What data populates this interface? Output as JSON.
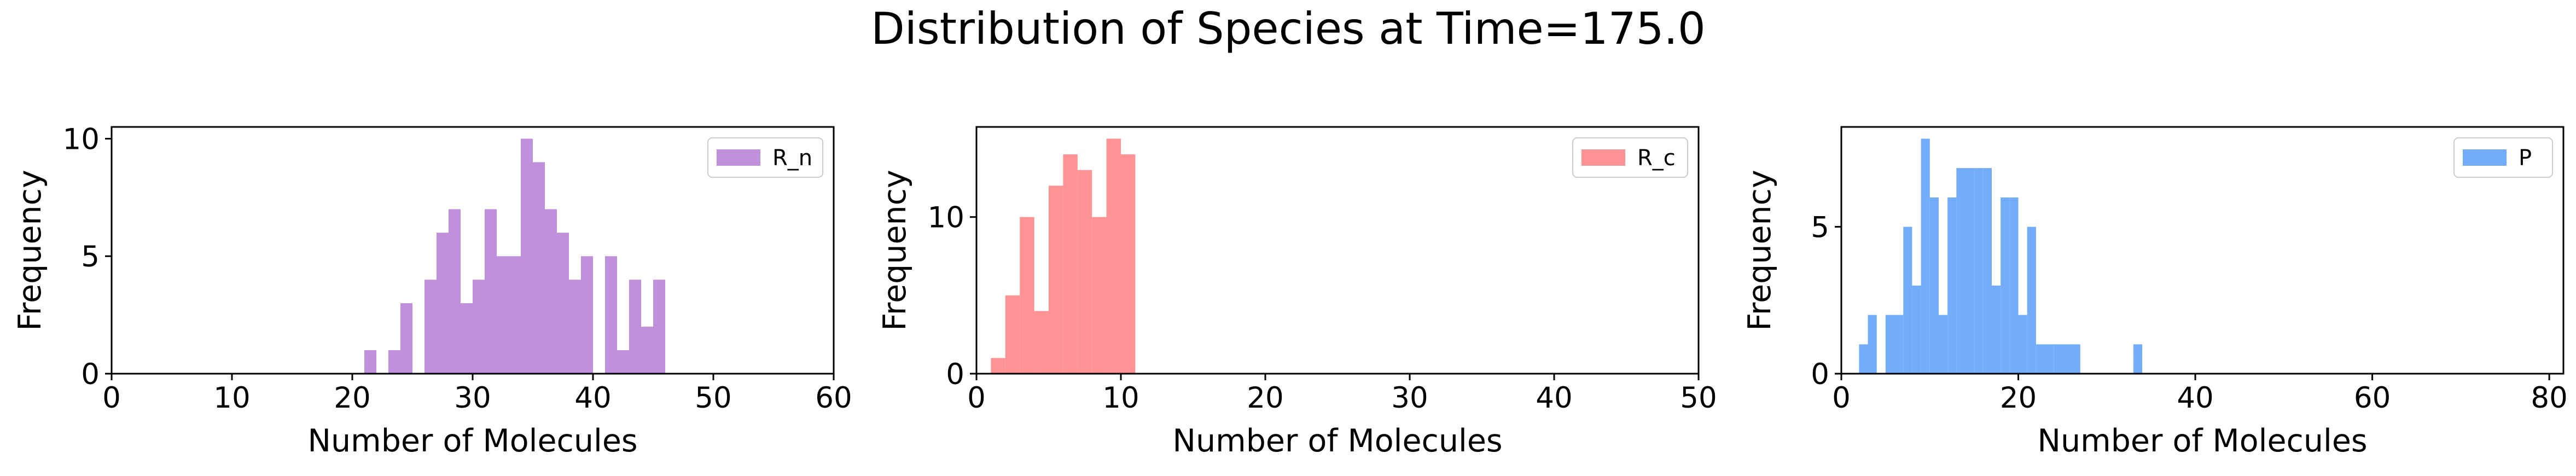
{
  "figure": {
    "suptitle": "Distribution of Species at Time=175.0"
  },
  "chart_data": [
    {
      "type": "bar",
      "subtype": "histogram",
      "xlabel": "Number of Molecules",
      "ylabel": "Frequency",
      "xlim": [
        0,
        60
      ],
      "ylim": [
        0,
        10.5
      ],
      "xticks": [
        0,
        10,
        20,
        30,
        40,
        50,
        60
      ],
      "yticks": [
        0,
        5,
        10
      ],
      "legend": {
        "position": "top-right"
      },
      "series": [
        {
          "name": "R_n",
          "color": "#b57cd4",
          "bin_width": 1,
          "bins": [
            {
              "start": 21,
              "count": 1
            },
            {
              "start": 22,
              "count": 0
            },
            {
              "start": 23,
              "count": 1
            },
            {
              "start": 24,
              "count": 3
            },
            {
              "start": 25,
              "count": 0
            },
            {
              "start": 26,
              "count": 4
            },
            {
              "start": 27,
              "count": 6
            },
            {
              "start": 28,
              "count": 7
            },
            {
              "start": 29,
              "count": 3
            },
            {
              "start": 30,
              "count": 4
            },
            {
              "start": 31,
              "count": 7
            },
            {
              "start": 32,
              "count": 5
            },
            {
              "start": 33,
              "count": 5
            },
            {
              "start": 34,
              "count": 10
            },
            {
              "start": 35,
              "count": 9
            },
            {
              "start": 36,
              "count": 7
            },
            {
              "start": 37,
              "count": 6
            },
            {
              "start": 38,
              "count": 4
            },
            {
              "start": 39,
              "count": 5
            },
            {
              "start": 40,
              "count": 0
            },
            {
              "start": 41,
              "count": 5
            },
            {
              "start": 42,
              "count": 1
            },
            {
              "start": 43,
              "count": 4
            },
            {
              "start": 44,
              "count": 2
            },
            {
              "start": 45,
              "count": 4
            }
          ]
        }
      ]
    },
    {
      "type": "bar",
      "subtype": "histogram",
      "xlabel": "Number of Molecules",
      "ylabel": "Frequency",
      "xlim": [
        0,
        50
      ],
      "ylim": [
        0,
        15.75
      ],
      "xticks": [
        0,
        10,
        20,
        30,
        40,
        50
      ],
      "yticks": [
        0,
        10
      ],
      "legend": {
        "position": "top-right"
      },
      "series": [
        {
          "name": "R_c",
          "color": "#ff8080",
          "bin_width": 1,
          "bins": [
            {
              "start": 1,
              "count": 1
            },
            {
              "start": 2,
              "count": 5
            },
            {
              "start": 3,
              "count": 10
            },
            {
              "start": 4,
              "count": 4
            },
            {
              "start": 5,
              "count": 12
            },
            {
              "start": 6,
              "count": 14
            },
            {
              "start": 7,
              "count": 13
            },
            {
              "start": 8,
              "count": 10
            },
            {
              "start": 9,
              "count": 15
            },
            {
              "start": 10,
              "count": 14
            }
          ]
        }
      ]
    },
    {
      "type": "bar",
      "subtype": "histogram",
      "xlabel": "Number of Molecules",
      "ylabel": "Frequency",
      "xlim": [
        0,
        81.6
      ],
      "ylim": [
        0,
        8.4
      ],
      "xticks": [
        0,
        20,
        40,
        60,
        80
      ],
      "yticks": [
        0,
        5
      ],
      "legend": {
        "position": "top-right"
      },
      "series": [
        {
          "name": "P",
          "color": "#5b9df7",
          "bin_width": 1,
          "bins": [
            {
              "start": 2,
              "count": 1
            },
            {
              "start": 3,
              "count": 2
            },
            {
              "start": 4,
              "count": 0
            },
            {
              "start": 5,
              "count": 2
            },
            {
              "start": 6,
              "count": 2
            },
            {
              "start": 7,
              "count": 5
            },
            {
              "start": 8,
              "count": 3
            },
            {
              "start": 9,
              "count": 8
            },
            {
              "start": 10,
              "count": 6
            },
            {
              "start": 11,
              "count": 2
            },
            {
              "start": 12,
              "count": 6
            },
            {
              "start": 13,
              "count": 7
            },
            {
              "start": 14,
              "count": 7
            },
            {
              "start": 15,
              "count": 7
            },
            {
              "start": 16,
              "count": 7
            },
            {
              "start": 17,
              "count": 3
            },
            {
              "start": 18,
              "count": 6
            },
            {
              "start": 19,
              "count": 6
            },
            {
              "start": 20,
              "count": 2
            },
            {
              "start": 21,
              "count": 5
            },
            {
              "start": 22,
              "count": 1
            },
            {
              "start": 23,
              "count": 1
            },
            {
              "start": 24,
              "count": 1
            },
            {
              "start": 25,
              "count": 1
            },
            {
              "start": 26,
              "count": 1
            },
            {
              "start": 27,
              "count": 0
            },
            {
              "start": 33,
              "count": 1
            }
          ]
        }
      ]
    }
  ]
}
